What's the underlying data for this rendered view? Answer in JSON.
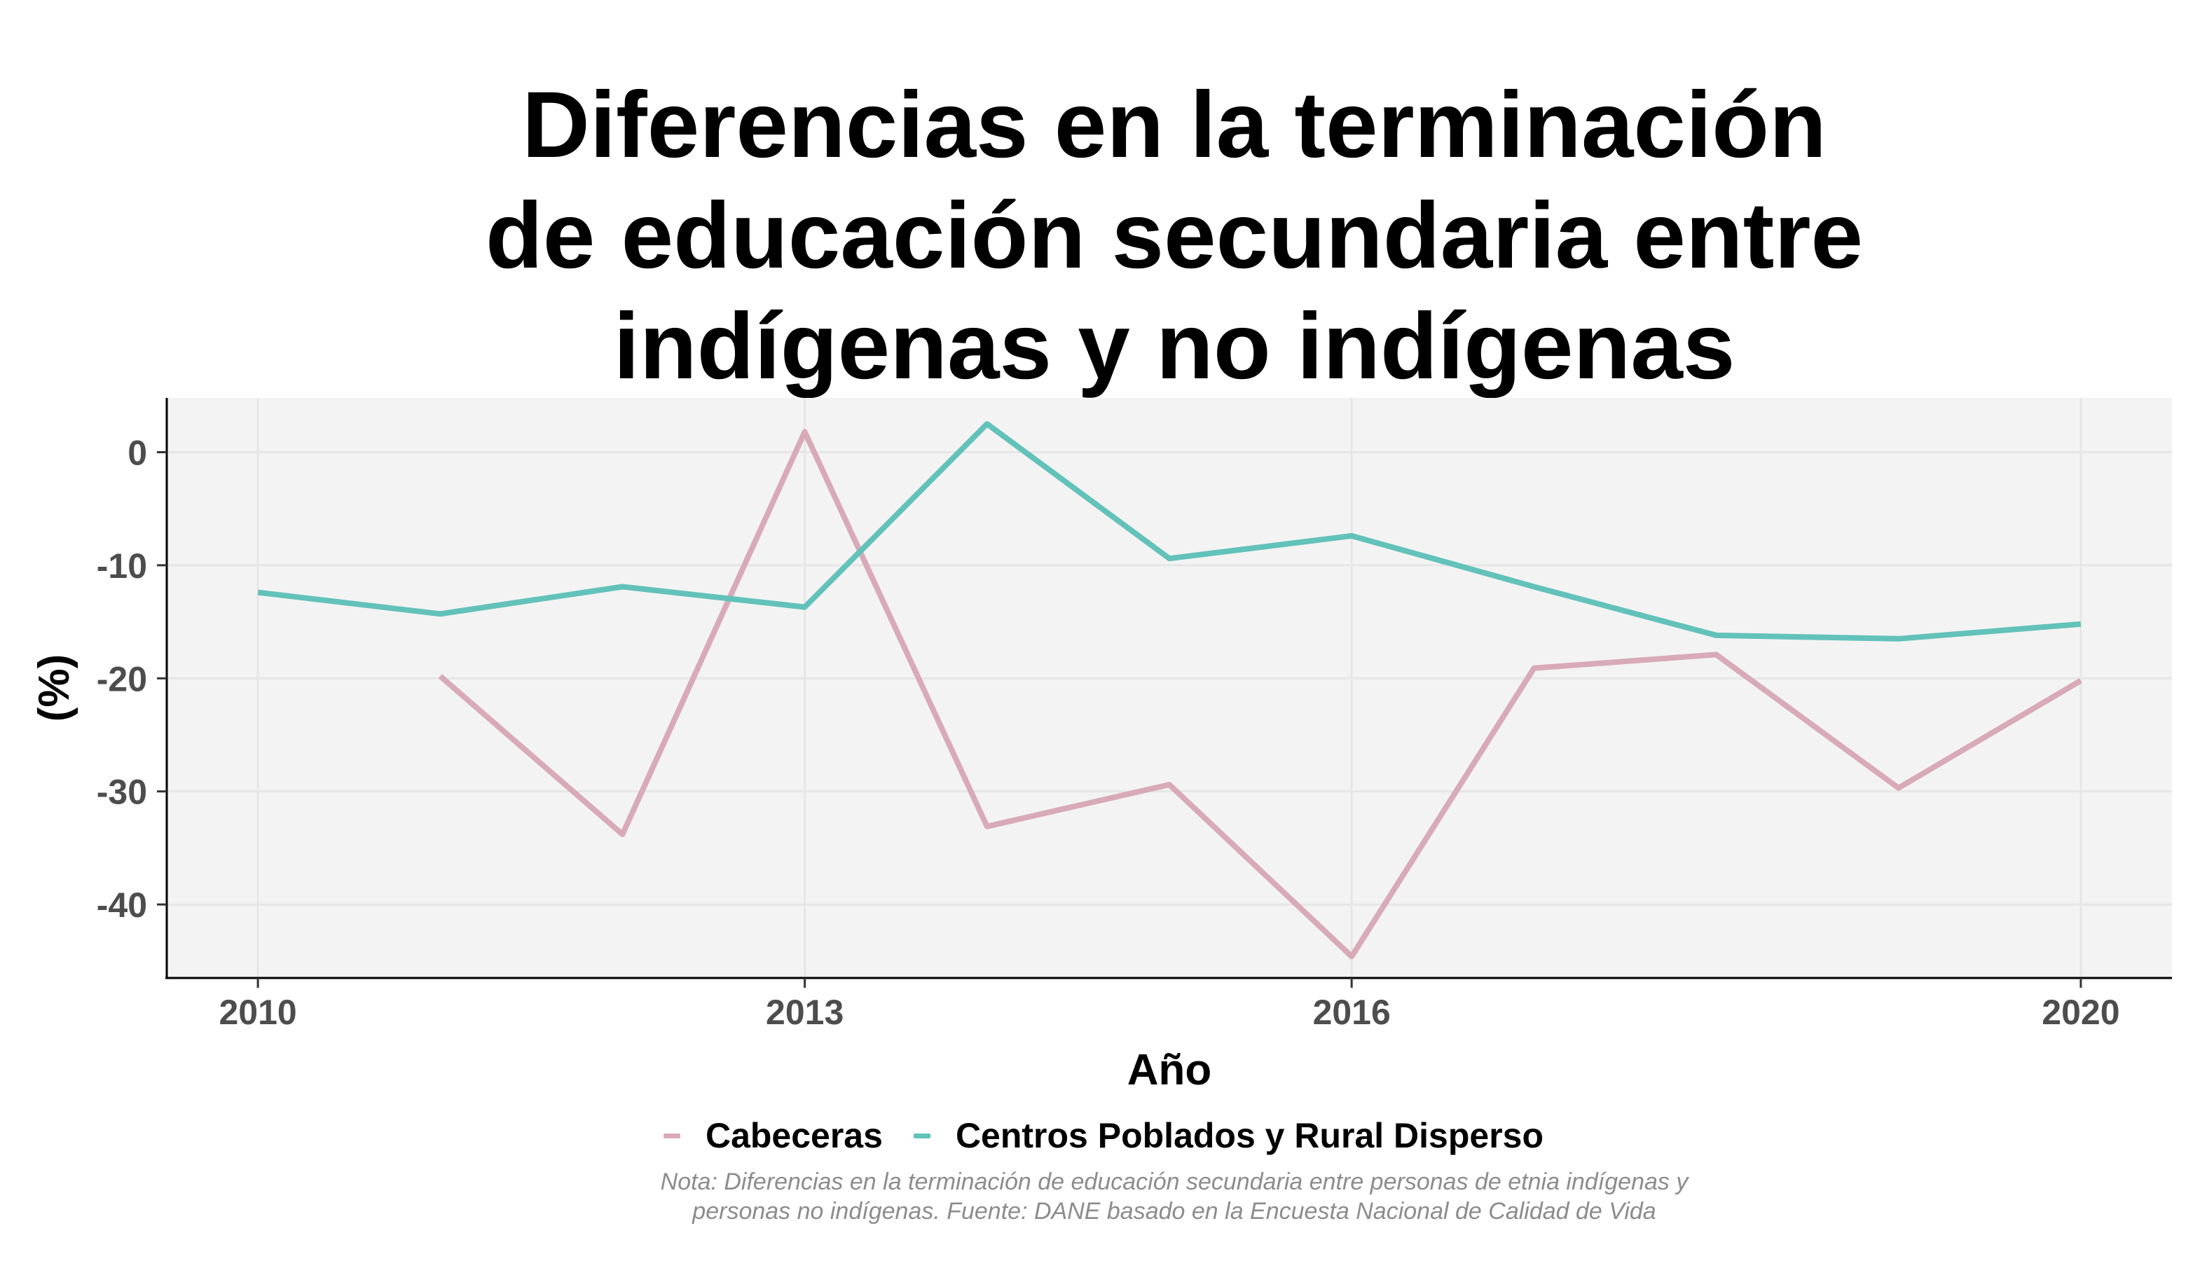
{
  "chart_data": {
    "type": "line",
    "title_lines": [
      "Diferencias en la terminación",
      "de educación secundaria entre",
      "indígenas y no indígenas"
    ],
    "xlabel": "Año",
    "ylabel": "(%)",
    "xlim": [
      2009.5,
      2020.5
    ],
    "ylim": [
      -46.5,
      4.8
    ],
    "x_ticks": [
      2010,
      2013,
      2016,
      2020
    ],
    "y_ticks": [
      0,
      -10,
      -20,
      -30,
      -40
    ],
    "grid": true,
    "legend_position": "bottom",
    "series": [
      {
        "name": "Cabeceras",
        "color": "#d8aab8",
        "points": [
          [
            2011,
            -19.8
          ],
          [
            2012,
            -33.8
          ],
          [
            2013,
            1.8
          ],
          [
            2014,
            -33.1
          ],
          [
            2015,
            -29.4
          ],
          [
            2016,
            -44.6
          ],
          [
            2017,
            -19.1
          ],
          [
            2018,
            -17.9
          ],
          [
            2019,
            -29.7
          ],
          [
            2020,
            -20.2
          ]
        ]
      },
      {
        "name": "Centros Poblados y Rural Disperso",
        "color": "#62c2b9",
        "points": [
          [
            2010,
            -12.4
          ],
          [
            2011,
            -14.3
          ],
          [
            2012,
            -11.9
          ],
          [
            2013,
            -13.7
          ],
          [
            2014,
            2.5
          ],
          [
            2015,
            -9.4
          ],
          [
            2016,
            -7.4
          ],
          [
            2017,
            -11.9
          ],
          [
            2018,
            -16.2
          ],
          [
            2019,
            -16.5
          ],
          [
            2020,
            -15.2
          ]
        ]
      }
    ]
  },
  "note_lines": [
    "Nota: Diferencias en la terminación de educación secundaria entre personas de etnia indígenas y",
    "personas no indígenas. Fuente: DANE basado en la Encuesta Nacional de Calidad de Vida"
  ]
}
